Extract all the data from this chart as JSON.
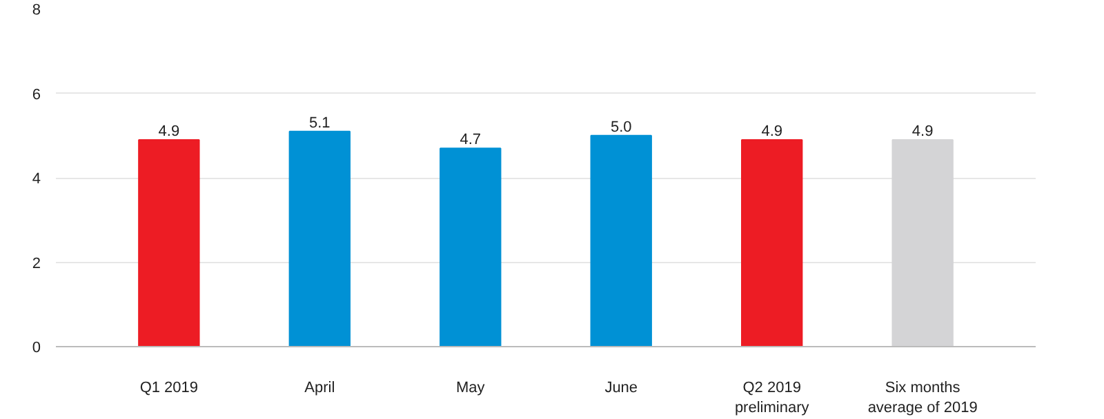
{
  "chart_data": {
    "type": "bar",
    "categories": [
      "Q1 2019",
      "April",
      "May",
      "June",
      "Q2 2019\npreliminary",
      "Six months\naverage of 2019"
    ],
    "values": [
      4.9,
      5.1,
      4.7,
      5.0,
      4.9,
      4.9
    ],
    "colors": [
      "#ed1c24",
      "#0091d5",
      "#0091d5",
      "#0091d5",
      "#ed1c24",
      "#d4d4d6"
    ],
    "value_labels": [
      "4.9",
      "5.1",
      "4.7",
      "5.0",
      "4.9",
      "4.9"
    ],
    "ylim": [
      0,
      8
    ],
    "yticks": [
      0,
      2,
      4,
      6,
      8
    ],
    "grid": "y"
  }
}
